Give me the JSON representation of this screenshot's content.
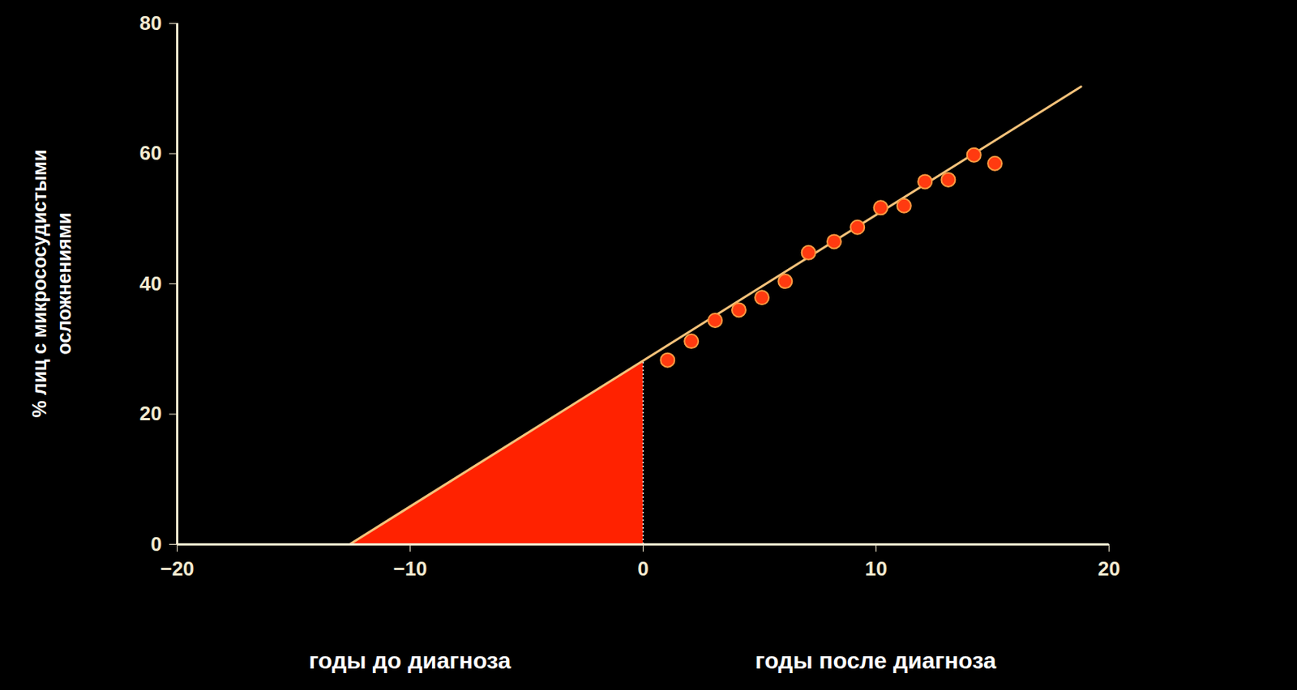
{
  "chart_data": {
    "type": "scatter",
    "ylabel": "% лиц с микрососудистыми осложнениями",
    "xlim": [
      -20,
      20
    ],
    "xticks": [
      -20,
      -10,
      0,
      10,
      20
    ],
    "ylim": [
      0,
      80
    ],
    "yticks": [
      0,
      20,
      40,
      60,
      80
    ],
    "grid": false,
    "annotations": [
      {
        "text": "годы до диагноза",
        "x": -10
      },
      {
        "text": "годы после диагноза",
        "x": 10
      }
    ],
    "series": [
      {
        "type": "area",
        "color": "#ff2200",
        "x": [
          -12.6,
          0
        ],
        "values": [
          0,
          28.2
        ]
      },
      {
        "type": "line",
        "color": "#f4c27a",
        "line_style": "solid",
        "x": [
          -12.6,
          18.8
        ],
        "values": [
          0,
          70.3
        ]
      },
      {
        "type": "scatter",
        "color": "#ff3a10",
        "marker": "circle",
        "x": [
          1.05,
          2.07,
          3.09,
          4.11,
          5.1,
          6.1,
          7.1,
          8.2,
          9.2,
          10.2,
          11.2,
          12.1,
          13.1,
          14.2,
          15.1
        ],
        "values": [
          28.3,
          31.2,
          34.4,
          36.0,
          37.9,
          40.4,
          44.8,
          46.5,
          48.7,
          51.7,
          52.0,
          55.7,
          56.0,
          59.8,
          58.5
        ]
      }
    ]
  }
}
